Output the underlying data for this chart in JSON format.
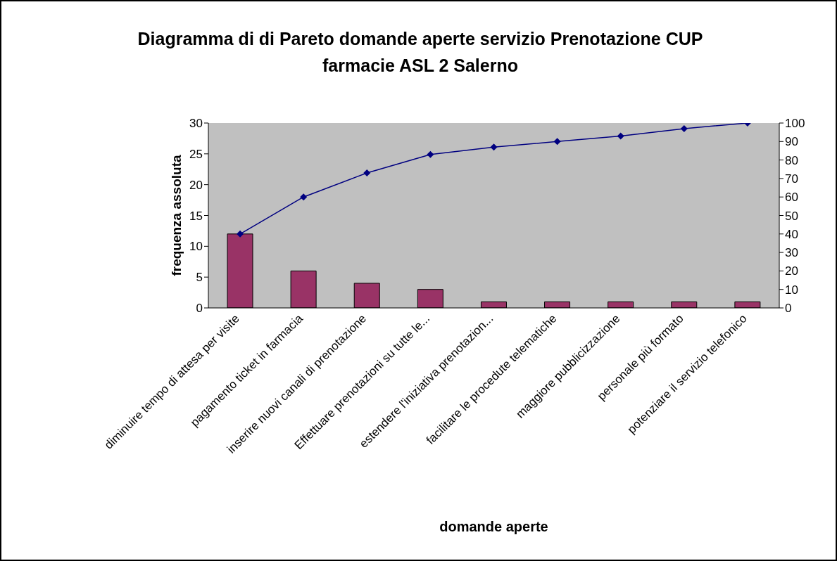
{
  "chart_data": {
    "type": "bar",
    "title": "Diagramma di di Pareto domande aperte servizio Prenotazione CUP farmacie ASL 2 Salerno",
    "xlabel": "domande aperte",
    "ylabel": "frequenza assoluta",
    "categories": [
      "diminuire tempo di attesa per visite",
      "pagamento ticket in farmacia",
      "inserire nuovi canali di prenotazione",
      "Effettuare prenotazioni su tutte le...",
      "estendere l'iniziativa prenotazion...",
      "facilitare le procedute telematiche",
      "maggiore pubblicizzazione",
      "personale più formato",
      "potenziare il servizio telefonico"
    ],
    "series": [
      {
        "color": "#993366",
        "values": [
          12,
          6,
          4,
          3,
          1,
          1,
          1,
          1,
          1
        ]
      },
      {
        "type": "line",
        "axis": "y2",
        "color": "#000080",
        "marker": "diamond",
        "values": [
          40,
          60,
          73,
          83,
          87,
          90,
          93,
          97,
          100
        ]
      }
    ],
    "ylim": [
      0,
      30
    ],
    "yticks": [
      0,
      5,
      10,
      15,
      20,
      25,
      30
    ],
    "y2lim": [
      0,
      100
    ],
    "y2ticks": [
      0,
      10,
      20,
      30,
      40,
      50,
      60,
      70,
      80,
      90,
      100
    ],
    "grid": false
  }
}
